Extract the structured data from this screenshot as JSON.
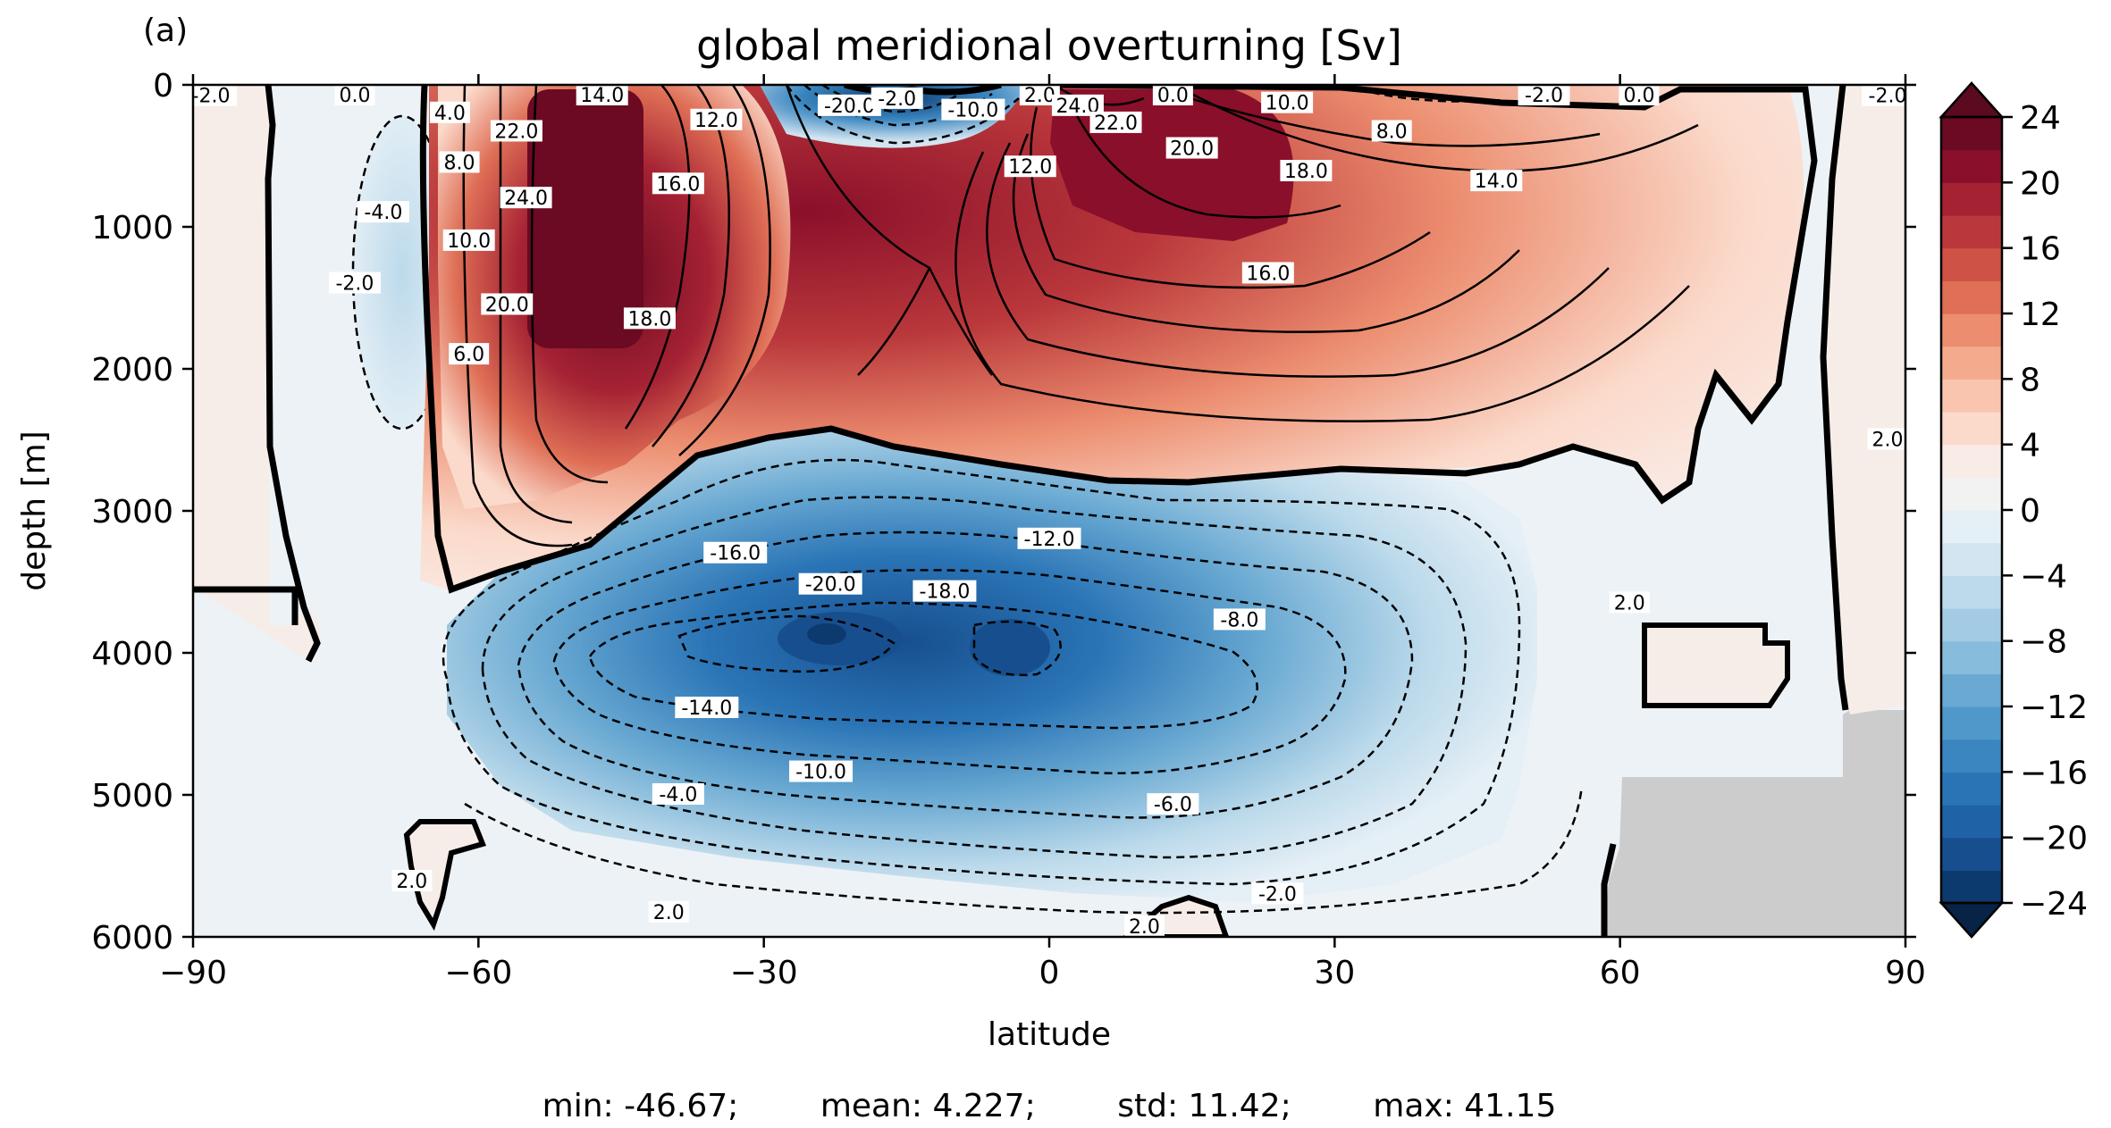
{
  "chart_data": {
    "type": "heatmap",
    "panel_label": "(a)",
    "title": "global meridional overturning [Sv]",
    "xlabel": "latitude",
    "ylabel": "depth [m]",
    "xlim": [
      -90,
      90
    ],
    "ylim": [
      6000,
      0
    ],
    "x_ticks": [
      -90,
      -60,
      -30,
      0,
      30,
      60,
      90
    ],
    "x_tick_labels": [
      "−90",
      "−60",
      "−30",
      "0",
      "30",
      "60",
      "90"
    ],
    "y_ticks": [
      0,
      1000,
      2000,
      3000,
      4000,
      5000,
      6000
    ],
    "y_tick_labels": [
      "0",
      "1000",
      "2000",
      "3000",
      "4000",
      "5000",
      "6000"
    ],
    "colorbar": {
      "levels": [
        -24,
        -22,
        -20,
        -18,
        -16,
        -14,
        -12,
        -10,
        -8,
        -6,
        -4,
        -2,
        0,
        2,
        4,
        6,
        8,
        10,
        12,
        14,
        16,
        18,
        20,
        22,
        24
      ],
      "tick_values": [
        24,
        20,
        16,
        12,
        8,
        4,
        0,
        -4,
        -8,
        -12,
        -16,
        -20,
        -24
      ],
      "tick_labels": [
        "24",
        "20",
        "16",
        "12",
        "8",
        "4",
        "0",
        "−4",
        "−8",
        "−12",
        "−16",
        "−20",
        "−24"
      ],
      "extend": "both",
      "colormap": "RdBu_r",
      "colors": [
        "#0d3a6e",
        "#174f8e",
        "#1f62a6",
        "#2a74b6",
        "#3b86c0",
        "#4f98c9",
        "#69a9d2",
        "#88bcdc",
        "#a3cce4",
        "#bcdaeb",
        "#d2e5f1",
        "#e5eff6",
        "#f2f2f2",
        "#f9ebe6",
        "#fbdacb",
        "#f9c5ae",
        "#f4aa8c",
        "#ec8d6f",
        "#df6f56",
        "#cf5246",
        "#ba383b",
        "#a52233",
        "#8a0f2a",
        "#6b0a22"
      ],
      "under_color": "#072447",
      "over_color": "#5c0a1f",
      "land_color": "#cccccc"
    },
    "contour_labels": [
      {
        "text": "14.0",
        "lat": -47,
        "depth": 30
      },
      {
        "text": "22.0",
        "lat": -56,
        "depth": 330
      },
      {
        "text": "4.0",
        "lat": -63,
        "depth": 200
      },
      {
        "text": "8.0",
        "lat": -62,
        "depth": 550
      },
      {
        "text": "24.0",
        "lat": -55,
        "depth": 800
      },
      {
        "text": "10.0",
        "lat": -61,
        "depth": 1100
      },
      {
        "text": "-4.0",
        "lat": -70,
        "depth": 900
      },
      {
        "text": "-2.0",
        "lat": -73,
        "depth": 1400
      },
      {
        "text": "20.0",
        "lat": -57,
        "depth": 1550
      },
      {
        "text": "18.0",
        "lat": -42,
        "depth": 1650
      },
      {
        "text": "6.0",
        "lat": -61,
        "depth": 1900
      },
      {
        "text": "12.0",
        "lat": -35,
        "depth": 250
      },
      {
        "text": "16.0",
        "lat": -39,
        "depth": 700
      },
      {
        "text": "-20.0",
        "lat": -21,
        "depth": 150
      },
      {
        "text": "-2.0",
        "lat": -16,
        "depth": 100
      },
      {
        "text": "-10.0",
        "lat": -8,
        "depth": 180
      },
      {
        "text": "2.0",
        "lat": -1,
        "depth": 70
      },
      {
        "text": "24.0",
        "lat": 3,
        "depth": 150
      },
      {
        "text": "22.0",
        "lat": 7,
        "depth": 270
      },
      {
        "text": "12.0",
        "lat": -2,
        "depth": 580
      },
      {
        "text": "0.0",
        "lat": 13,
        "depth": 0
      },
      {
        "text": "20.0",
        "lat": 15,
        "depth": 450
      },
      {
        "text": "10.0",
        "lat": 25,
        "depth": 130
      },
      {
        "text": "8.0",
        "lat": 36,
        "depth": 330
      },
      {
        "text": "18.0",
        "lat": 27,
        "depth": 610
      },
      {
        "text": "14.0",
        "lat": 47,
        "depth": 680
      },
      {
        "text": "16.0",
        "lat": 23,
        "depth": 1330
      },
      {
        "text": "-2.0",
        "lat": 52,
        "depth": 20
      },
      {
        "text": "0.0",
        "lat": 62,
        "depth": 60
      },
      {
        "text": "-16.0",
        "lat": -33,
        "depth": 3300
      },
      {
        "text": "-20.0",
        "lat": -23,
        "depth": 3520
      },
      {
        "text": "-18.0",
        "lat": -11,
        "depth": 3570
      },
      {
        "text": "-12.0",
        "lat": 0,
        "depth": 3200
      },
      {
        "text": "-8.0",
        "lat": 20,
        "depth": 3770
      },
      {
        "text": "-14.0",
        "lat": -36,
        "depth": 4390
      },
      {
        "text": "-10.0",
        "lat": -24,
        "depth": 4840
      },
      {
        "text": "-4.0",
        "lat": -39,
        "depth": 5000
      },
      {
        "text": "-6.0",
        "lat": 13,
        "depth": 5070
      },
      {
        "text": "-2.0",
        "lat": 24,
        "depth": 5700
      },
      {
        "text": "2.0",
        "lat": -67,
        "depth": 5610
      },
      {
        "text": "2.0",
        "lat": -40,
        "depth": 5830
      },
      {
        "text": "2.0",
        "lat": 61,
        "depth": 3650
      },
      {
        "text": "2.0",
        "lat": 10,
        "depth": 5930
      },
      {
        "text": "-2.0",
        "lat": -90,
        "depth": 80
      },
      {
        "text": "-2.0",
        "lat": 90,
        "depth": 80
      },
      {
        "text": "2.0",
        "lat": 90,
        "depth": 2500
      },
      {
        "text": "0.0",
        "lat": -73,
        "depth": 0
      }
    ],
    "stats_text": "min: -46.67;        mean: 4.227;        std: 11.42;        max: 41.15",
    "stats": {
      "min": -46.67,
      "mean": 4.227,
      "std": 11.42,
      "max": 41.15
    }
  }
}
